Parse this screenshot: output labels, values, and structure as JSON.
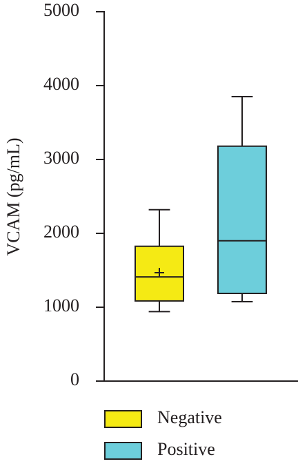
{
  "chart_data": {
    "type": "box",
    "ylabel": "VCAM (pg/mL)",
    "ylim": [
      0,
      5000
    ],
    "yticks": [
      0,
      1000,
      2000,
      3000,
      4000,
      5000
    ],
    "series": [
      {
        "name": "Negative",
        "color": "#f5ea14",
        "min": 940,
        "q1": 1085,
        "median": 1410,
        "q3": 1825,
        "max": 2320,
        "mean": 1467
      },
      {
        "name": "Positive",
        "color": "#6dcedb",
        "min": 1075,
        "q1": 1187,
        "median": 1900,
        "q3": 3180,
        "max": 3850
      }
    ]
  }
}
